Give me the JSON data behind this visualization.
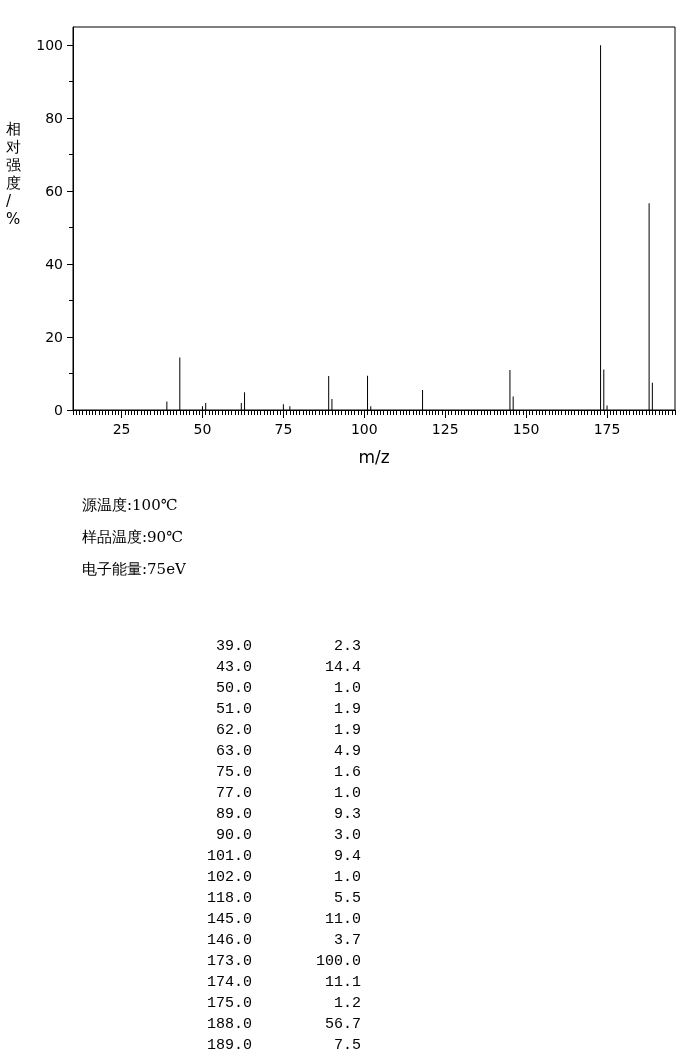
{
  "chart_data": [
    {
      "type": "bar",
      "xlabel": "m/z",
      "ylabel": "相对强度/%",
      "x": [
        39,
        43,
        50,
        51,
        62,
        63,
        75,
        77,
        89,
        90,
        101,
        102,
        118,
        145,
        146,
        173,
        174,
        175,
        188,
        189
      ],
      "values": [
        2.3,
        14.4,
        1.0,
        1.9,
        1.9,
        4.9,
        1.6,
        1.0,
        9.3,
        3.0,
        9.4,
        1.0,
        5.5,
        11.0,
        3.7,
        100.0,
        11.1,
        1.2,
        56.7,
        7.5
      ],
      "color": "#000000",
      "xlim": [
        10,
        196
      ],
      "xticks": [
        25,
        50,
        75,
        100,
        125,
        150,
        175
      ],
      "ylim": [
        0,
        105
      ],
      "yticks": [
        0,
        20,
        40,
        60,
        80,
        100
      ],
      "annotations": [
        "源温度:100℃",
        "样品温度:90℃",
        "电子能量:75eV"
      ]
    },
    {
      "type": "other",
      "annotations": [
        "39.0",
        "2.3",
        "43.0",
        "14.4",
        "50.0",
        "1.0",
        "51.0",
        "1.9",
        "62.0",
        "1.9",
        "63.0",
        "4.9",
        "75.0",
        "1.6",
        "77.0",
        "1.0",
        "89.0",
        "9.3",
        "90.0",
        "3.0",
        "101.0",
        "9.4",
        "102.0",
        "1.0",
        "118.0",
        "5.5",
        "145.0",
        "11.0",
        "146.0",
        "3.7",
        "173.0",
        "100.0",
        "174.0",
        "11.1",
        "175.0",
        "1.2",
        "188.0",
        "56.7",
        "189.0",
        "7.5"
      ]
    }
  ]
}
